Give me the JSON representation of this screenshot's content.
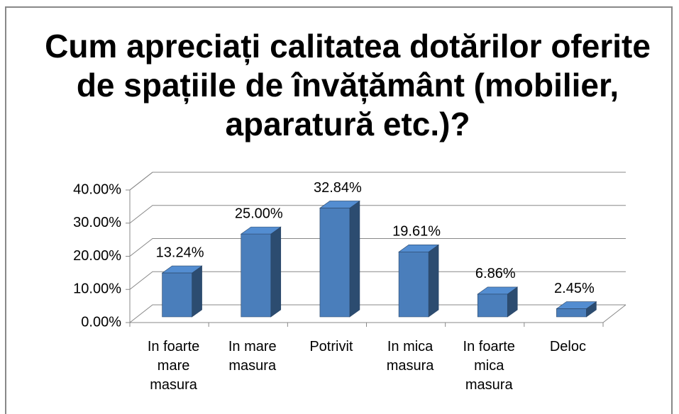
{
  "chart_data": {
    "type": "bar3d",
    "title": "Cum apreciați calitatea dotărilor oferite de spațiile de învățământ (mobilier, aparatură etc.)?",
    "categories": [
      "In foarte mare masura",
      "In mare masura",
      "Potrivit",
      "In mica masura",
      "In foarte mica masura",
      "Deloc"
    ],
    "values": [
      13.24,
      25.0,
      32.84,
      19.61,
      6.86,
      2.45
    ],
    "value_labels": [
      "13.24%",
      "25.00%",
      "32.84%",
      "19.61%",
      "6.86%",
      "2.45%"
    ],
    "color": "#4a7ebb",
    "ylim": [
      0,
      40
    ],
    "yticks": [
      {
        "value": 0,
        "label": "0.00%"
      },
      {
        "value": 10,
        "label": "10.00%"
      },
      {
        "value": 20,
        "label": "20.00%"
      },
      {
        "value": 30,
        "label": "30.00%"
      },
      {
        "value": 40,
        "label": "40.00%"
      }
    ],
    "grid": true
  }
}
